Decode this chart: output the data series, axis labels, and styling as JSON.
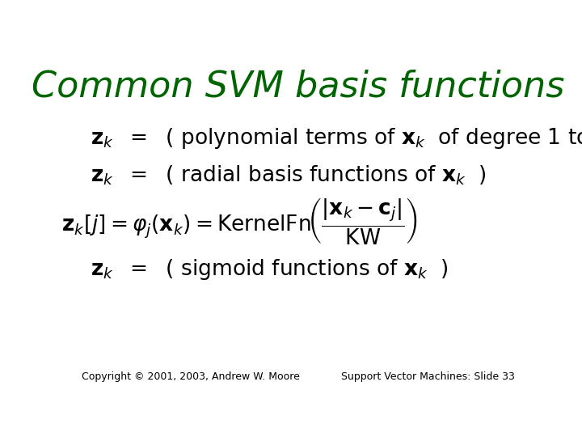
{
  "title": "Common SVM basis functions",
  "title_color": "#006400",
  "title_fontsize": 32,
  "bg_color": "#ffffff",
  "footer_left": "Copyright © 2001, 2003, Andrew W. Moore",
  "footer_right": "Support Vector Machines: Slide 33",
  "footer_fontsize": 9,
  "text_color": "#000000",
  "bullet_fontsize": 19,
  "formula_fontsize": 19
}
